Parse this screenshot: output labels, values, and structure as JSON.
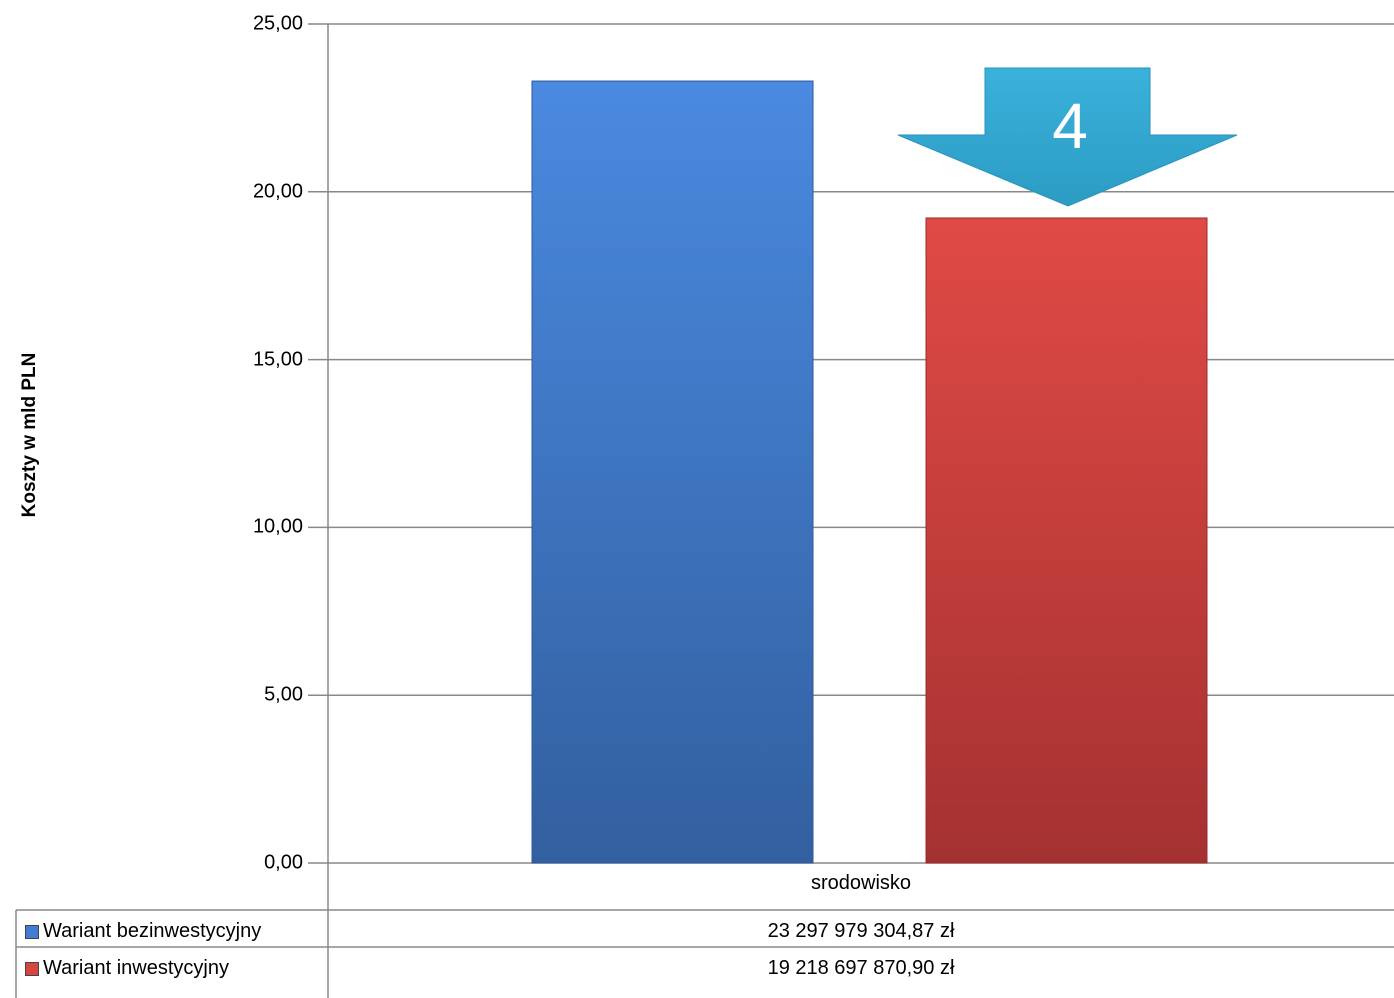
{
  "chart_data": {
    "type": "bar",
    "categories": [
      "srodowisko"
    ],
    "series": [
      {
        "name": "Wariant bezinwestycyjny",
        "values": [
          23.3
        ],
        "table_value": "23 297 979 304,87 zł",
        "color": "#3f7fd0"
      },
      {
        "name": "Wariant inwestycyjny",
        "values": [
          19.22
        ],
        "table_value": "19 218 697 870,90 zł",
        "color": "#d64541"
      }
    ],
    "ylabel": "Koszty w mld PLN",
    "ylim": [
      0,
      25
    ],
    "yticks": [
      "0,00",
      "5,00",
      "10,00",
      "15,00",
      "20,00",
      "25,00"
    ],
    "grid": true,
    "legend": "data-table-bottom",
    "annotation": {
      "text": "4",
      "shape": "down-arrow",
      "color": "#3aaed6"
    }
  }
}
